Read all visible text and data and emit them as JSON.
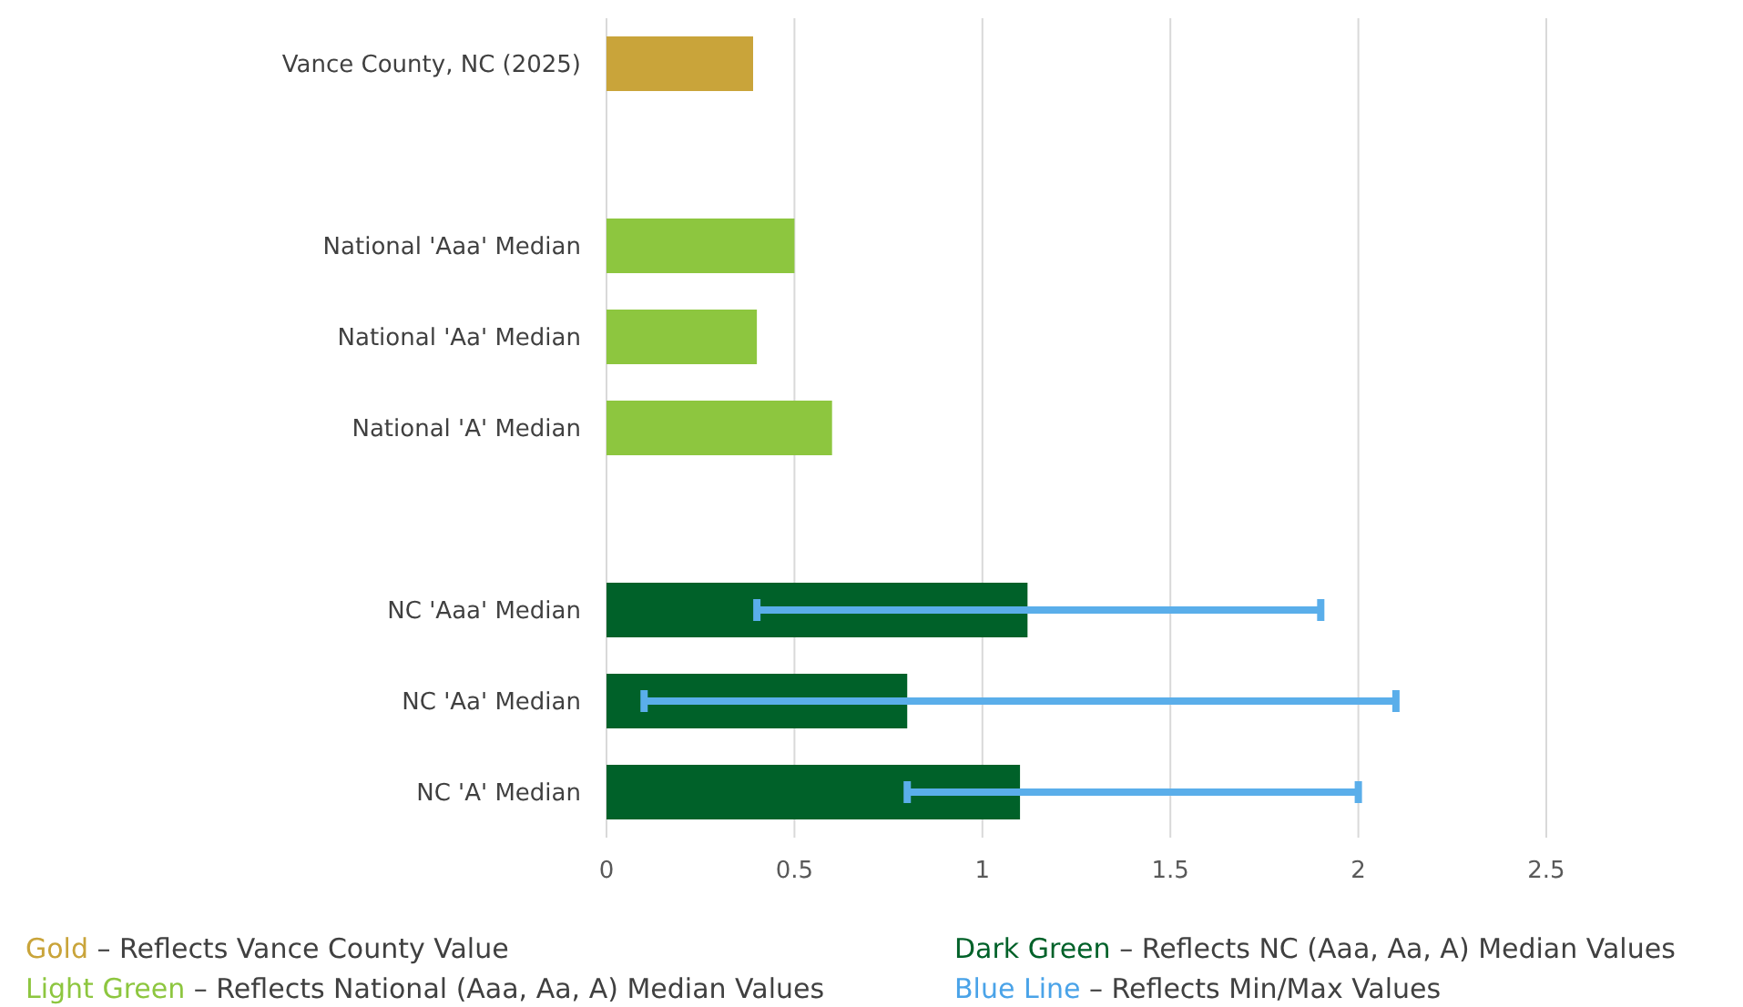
{
  "chart_data": {
    "type": "bar",
    "orientation": "horizontal",
    "categories": [
      "Vance County, NC (2025)",
      null,
      "National 'Aaa' Median",
      "National 'Aa' Median",
      "National 'A' Median",
      null,
      "NC 'Aaa' Median",
      "NC 'Aa' Median",
      "NC 'A' Median"
    ],
    "values": [
      0.39,
      null,
      0.5,
      0.4,
      0.6,
      null,
      1.12,
      0.8,
      1.1
    ],
    "colors": [
      "#c9a43a",
      null,
      "#8dc63f",
      "#8dc63f",
      "#8dc63f",
      null,
      "#006129",
      "#006129",
      "#006129"
    ],
    "errors": [
      null,
      null,
      null,
      null,
      null,
      null,
      [
        0.4,
        1.9
      ],
      [
        0.1,
        2.1
      ],
      [
        0.8,
        2.0
      ]
    ],
    "xlim": [
      0,
      2.5
    ],
    "xticks": [
      0,
      0.5,
      1,
      1.5,
      2,
      2.5
    ],
    "grid": "x",
    "annotations": [
      "Gold – Reflects Vance County Value",
      "Dark Green – Reflects NC (Aaa, Aa, A) Median Values",
      "Light Green – Reflects National (Aaa, Aa, A) Median Values",
      "Blue Line – Reflects Min/Max Values"
    ]
  }
}
